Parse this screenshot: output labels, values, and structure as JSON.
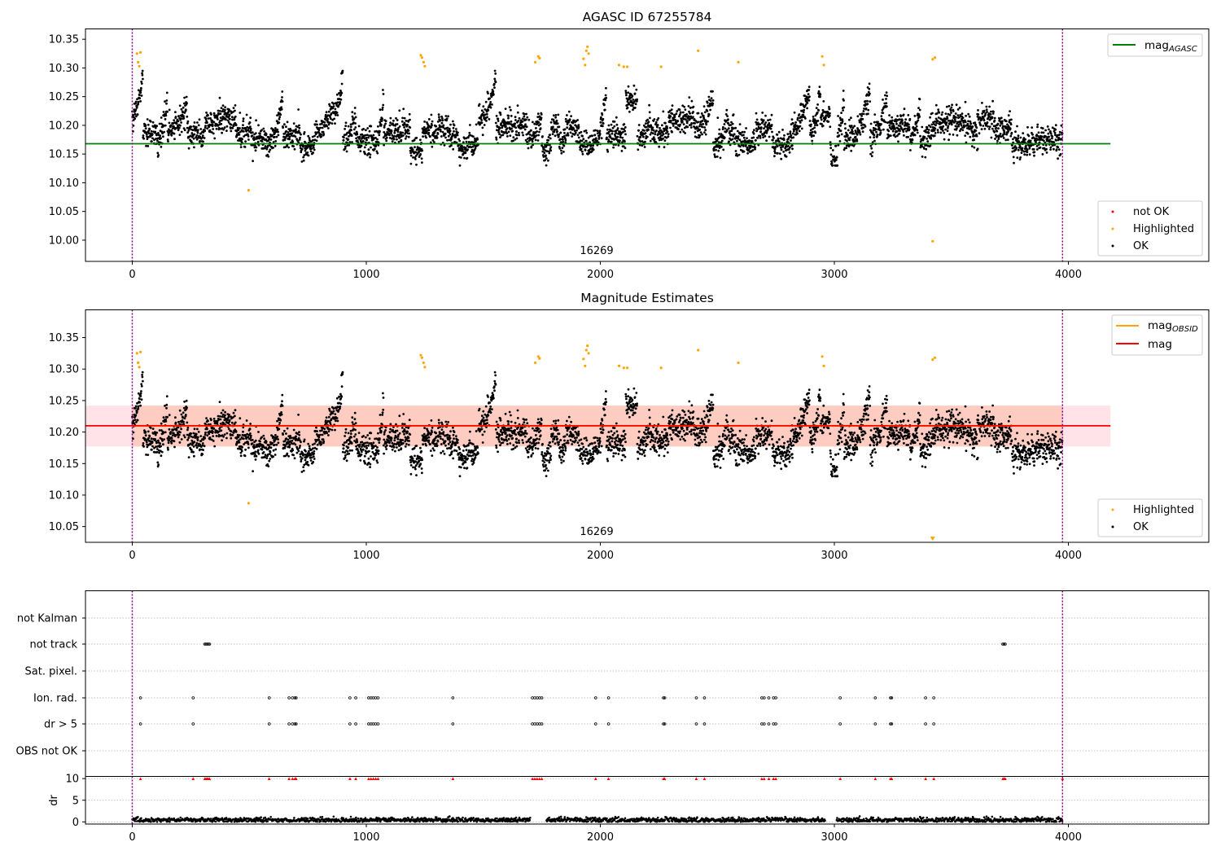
{
  "colors": {
    "ok": "#000000",
    "highlighted": "#ffa500",
    "not_ok": "#ff0000",
    "agasc_line": "#008000",
    "obsid_line": "#ffa500",
    "mag_line": "#ff0000",
    "band_outer": "#ffc0cb",
    "band_inner": "#ffa07a",
    "marker_vline": "#800080"
  },
  "chart_data": [
    {
      "type": "scatter",
      "title": "AGASC ID 67255784",
      "xlabel": "",
      "ylabel": "",
      "xlim": [
        -200,
        4600
      ],
      "ylim": [
        9.963,
        10.368
      ],
      "xticks": [
        0,
        1000,
        2000,
        3000,
        4000
      ],
      "yticks": [
        "10.00",
        "10.05",
        "10.10",
        "10.15",
        "10.20",
        "10.25",
        "10.30",
        "10.35"
      ],
      "obs_markers": [
        0,
        3975
      ],
      "obsid_label": {
        "text": "16269",
        "x": 1990
      },
      "line_series": [
        {
          "name": "mag_{AGASC}",
          "value": 10.168,
          "x_range": [
            -200,
            4180
          ]
        }
      ],
      "legend_lines": {
        "position": "upper right",
        "entries": [
          {
            "label": "mag",
            "sub": "AGASC"
          }
        ]
      },
      "legend_points": {
        "position": "lower right",
        "entries": [
          "not OK",
          "Highlighted",
          "OK"
        ]
      },
      "n_points": 3975,
      "series": [
        {
          "name": "OK",
          "description": "per-frame magnitude estimates, mostly 10.15–10.29"
        },
        {
          "name": "Highlighted",
          "points": [
            [
              20,
              10.325
            ],
            [
              25,
              10.31
            ],
            [
              30,
              10.303
            ],
            [
              35,
              10.327
            ],
            [
              1233,
              10.322
            ],
            [
              1238,
              10.318
            ],
            [
              1245,
              10.31
            ],
            [
              1250,
              10.303
            ],
            [
              1722,
              10.31
            ],
            [
              1735,
              10.32
            ],
            [
              1740,
              10.317
            ],
            [
              1928,
              10.316
            ],
            [
              1935,
              10.305
            ],
            [
              1940,
              10.33
            ],
            [
              1945,
              10.337
            ],
            [
              1950,
              10.325
            ],
            [
              2080,
              10.305
            ],
            [
              2100,
              10.302
            ],
            [
              2115,
              10.302
            ],
            [
              2260,
              10.302
            ],
            [
              2418,
              10.33
            ],
            [
              2590,
              10.31
            ],
            [
              2948,
              10.32
            ],
            [
              2955,
              10.305
            ],
            [
              3420,
              10.315
            ],
            [
              3430,
              10.318
            ],
            [
              497,
              10.087
            ],
            [
              3420,
              9.998
            ]
          ]
        },
        {
          "name": "not OK",
          "points": []
        }
      ]
    },
    {
      "type": "scatter",
      "title": "Magnitude Estimates",
      "xlabel": "",
      "ylabel": "",
      "xlim": [
        -200,
        4600
      ],
      "ylim": [
        10.025,
        10.394
      ],
      "xticks": [
        0,
        1000,
        2000,
        3000,
        4000
      ],
      "yticks": [
        "10.05",
        "10.10",
        "10.15",
        "10.20",
        "10.25",
        "10.30",
        "10.35"
      ],
      "obs_markers": [
        0,
        3975
      ],
      "obsid_label": {
        "text": "16269",
        "x": 1990
      },
      "band": {
        "outer": [
          10.177,
          10.242
        ],
        "inner": [
          10.177,
          10.242
        ],
        "x_range": [
          -200,
          4180
        ]
      },
      "line_series": [
        {
          "name": "mag_{OBSID}",
          "value": 10.21,
          "x_range": [
            0,
            3975
          ]
        },
        {
          "name": "mag",
          "value": 10.21,
          "x_range": [
            -200,
            4180
          ]
        }
      ],
      "legend_lines": {
        "position": "upper right",
        "entries": [
          {
            "label": "mag",
            "sub": "OBSID"
          },
          {
            "label": "mag",
            "sub": ""
          }
        ]
      },
      "legend_points": {
        "position": "lower right",
        "entries": [
          "Highlighted",
          "OK"
        ]
      },
      "n_points": 3975,
      "series": [
        {
          "name": "OK",
          "description": "same per-frame magnitudes"
        },
        {
          "name": "Highlighted",
          "points": [
            [
              20,
              10.325
            ],
            [
              25,
              10.31
            ],
            [
              30,
              10.303
            ],
            [
              35,
              10.327
            ],
            [
              1233,
              10.322
            ],
            [
              1238,
              10.318
            ],
            [
              1245,
              10.31
            ],
            [
              1250,
              10.303
            ],
            [
              1722,
              10.31
            ],
            [
              1735,
              10.32
            ],
            [
              1740,
              10.317
            ],
            [
              1928,
              10.316
            ],
            [
              1935,
              10.305
            ],
            [
              1940,
              10.33
            ],
            [
              1945,
              10.337
            ],
            [
              1950,
              10.325
            ],
            [
              2080,
              10.305
            ],
            [
              2100,
              10.302
            ],
            [
              2115,
              10.302
            ],
            [
              2260,
              10.302
            ],
            [
              2418,
              10.33
            ],
            [
              2590,
              10.31
            ],
            [
              2948,
              10.32
            ],
            [
              2955,
              10.305
            ],
            [
              3420,
              10.315
            ],
            [
              3430,
              10.318
            ],
            [
              497,
              10.087
            ]
          ]
        }
      ]
    },
    {
      "type": "scatter",
      "title": "",
      "xlim": [
        -200,
        4600
      ],
      "xticks": [
        0,
        1000,
        2000,
        3000,
        4000
      ],
      "obs_markers": [
        0,
        3975
      ],
      "categories": [
        "not Kalman",
        "not track",
        "Sat. pixel.",
        "Ion. rad.",
        "dr > 5",
        "OBS not OK"
      ],
      "flags": {
        "not Kalman": [],
        "not track": [
          310,
          315,
          320,
          325,
          330,
          3720,
          3725,
          3730
        ],
        "Sat. pixel.": [],
        "Ion. rad.": [
          35,
          260,
          585,
          670,
          685,
          695,
          700,
          930,
          955,
          1010,
          1020,
          1030,
          1040,
          1050,
          1370,
          1710,
          1720,
          1730,
          1740,
          1750,
          1980,
          2035,
          2270,
          2275,
          2410,
          2445,
          2690,
          2700,
          2720,
          2740,
          2750,
          3025,
          3175,
          3240,
          3245,
          3390,
          3425
        ],
        "dr > 5": [
          35,
          260,
          585,
          670,
          685,
          695,
          700,
          930,
          955,
          1010,
          1020,
          1030,
          1040,
          1050,
          1370,
          1710,
          1720,
          1730,
          1740,
          1750,
          1980,
          2035,
          2270,
          2275,
          2410,
          2445,
          2690,
          2700,
          2720,
          2740,
          2750,
          3025,
          3175,
          3240,
          3245,
          3390,
          3425
        ],
        "OBS not OK": []
      }
    },
    {
      "type": "line",
      "ylabel": "dr",
      "xlim": [
        -200,
        4600
      ],
      "ylim": [
        -0.5,
        10.5
      ],
      "xticks": [
        0,
        1000,
        2000,
        3000,
        4000
      ],
      "yticks": [
        0,
        5,
        10
      ],
      "obs_markers": [
        0,
        3975
      ],
      "series": [
        {
          "name": "dr",
          "description": "per-frame dr, values roughly 0–1.3"
        },
        {
          "name": "dr > 5 (clipped at 10)",
          "x": [
            35,
            260,
            310,
            315,
            320,
            325,
            330,
            585,
            670,
            685,
            695,
            700,
            930,
            955,
            1010,
            1020,
            1030,
            1040,
            1050,
            1370,
            1710,
            1720,
            1730,
            1740,
            1750,
            1980,
            2035,
            2270,
            2275,
            2410,
            2445,
            2690,
            2700,
            2720,
            2740,
            2750,
            3025,
            3175,
            3240,
            3245,
            3390,
            3425,
            3720,
            3725,
            3730,
            3975
          ],
          "value": 10
        }
      ]
    }
  ]
}
